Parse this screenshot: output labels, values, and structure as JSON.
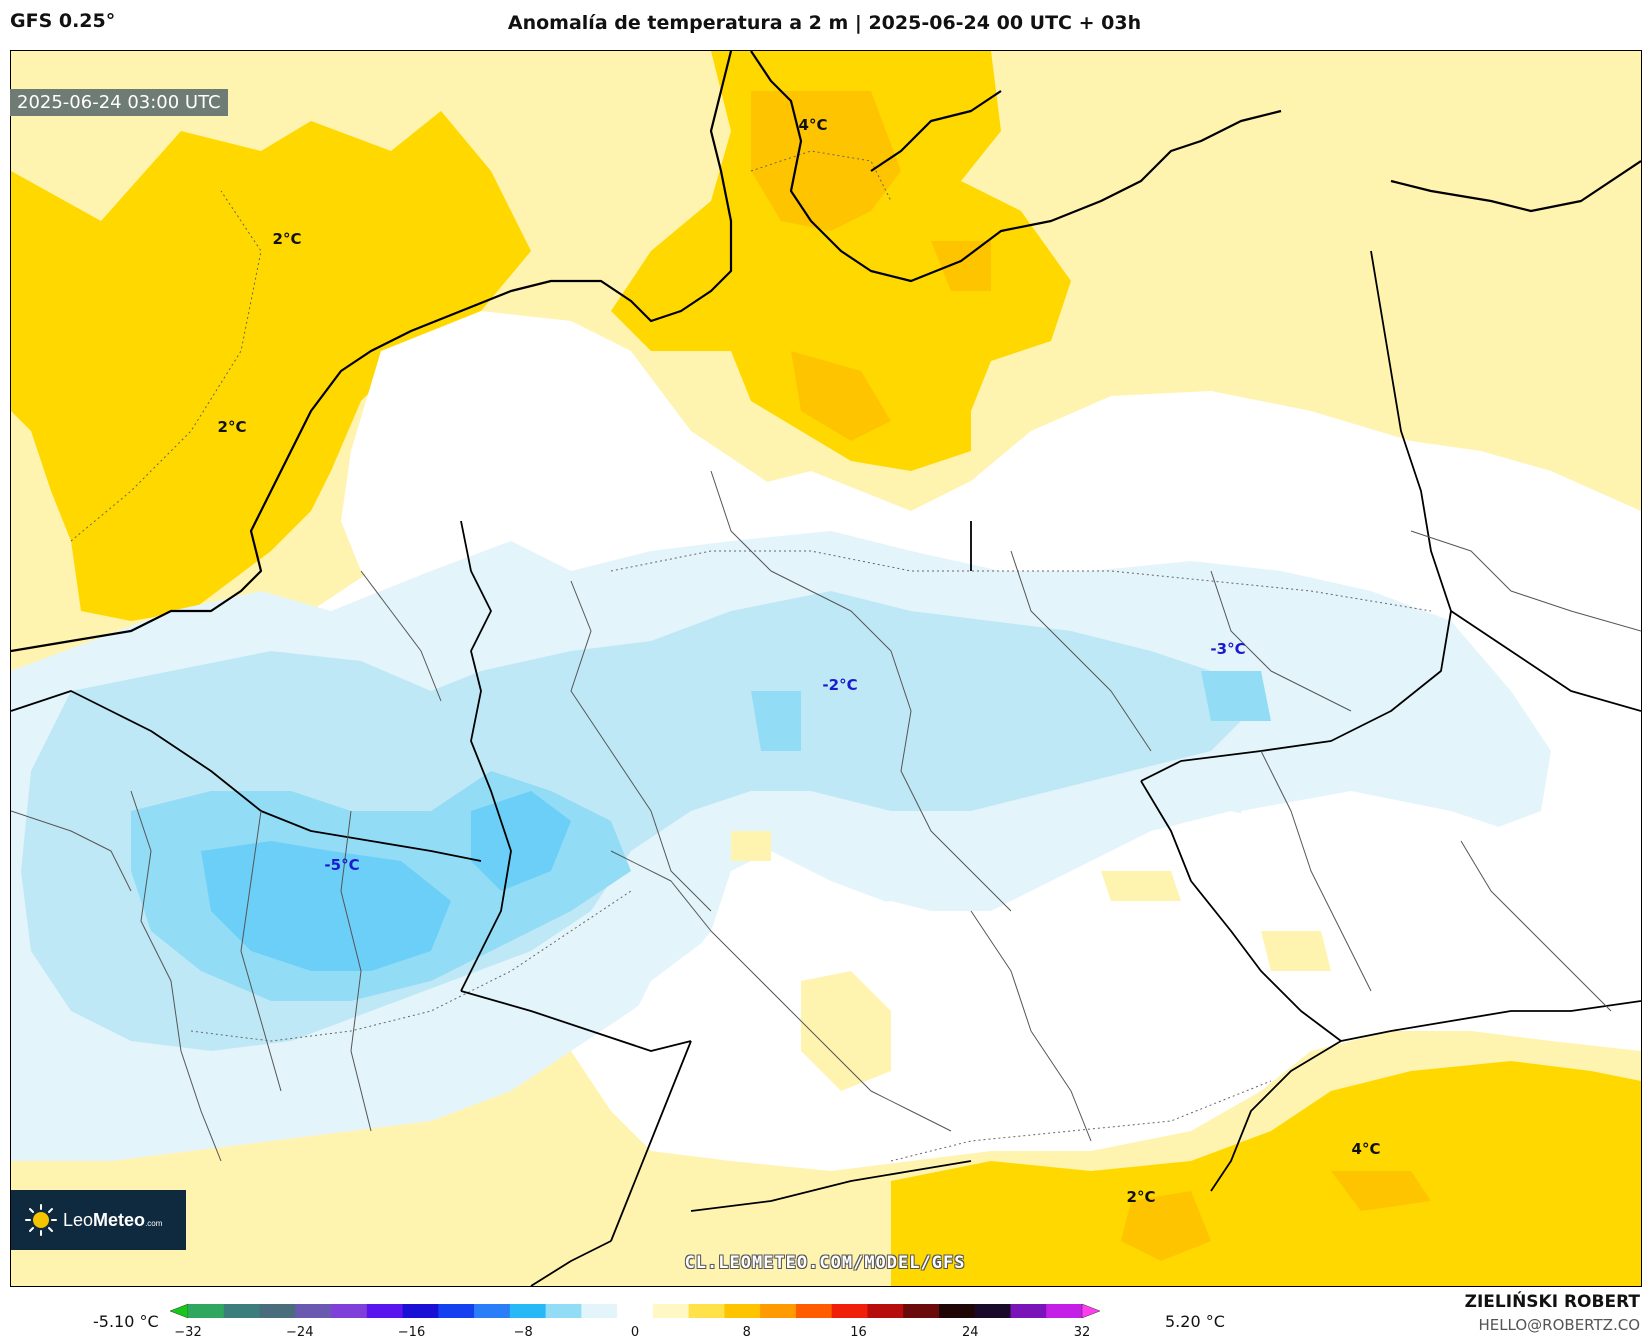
{
  "header": {
    "model": "GFS 0.25°",
    "title": "Anomalía de temperatura a 2 m | 2025-06-24 00 UTC + 03h"
  },
  "map": {
    "valid_time": "2025-06-24 03:00 UTC",
    "labels": {
      "warm_north_sea_1": "2°C",
      "warm_north_sea_2": "2°C",
      "warm_denmark": "4°C",
      "cold_central": "-2°C",
      "cold_east": "-3°C",
      "cold_west": "-5°C",
      "warm_south_1": "2°C",
      "warm_south_2": "4°C"
    },
    "watermark": "CL.LEOMETEO.COM/MODEL/GFS"
  },
  "logo": {
    "name_part1": "Leo",
    "name_part2": "Meteo",
    "suffix": ".com"
  },
  "colorbar": {
    "min_label": "-5.10 °C",
    "max_label": "5.20 °C",
    "ticks": [
      "−32",
      "−24",
      "−16",
      "−8",
      "0",
      "8",
      "16",
      "24",
      "32"
    ],
    "colors": [
      "#17c81a",
      "#2fa75e",
      "#3b7e7b",
      "#4a6d7d",
      "#6a59b0",
      "#7f3fd8",
      "#5a15ef",
      "#1a0fd4",
      "#1440f0",
      "#2a7ef8",
      "#27b8f8",
      "#93dcf5",
      "#e3f4fb",
      "#ffffff",
      "#fff8c4",
      "#ffe14a",
      "#ffc400",
      "#ff9a00",
      "#ff5c00",
      "#f01f0a",
      "#b80d0d",
      "#6a0a0a",
      "#200505",
      "#1a0a2a",
      "#7a14b8",
      "#c31fe6",
      "#ff3df0"
    ]
  },
  "credits": {
    "author": "ZIELIŃSKI ROBERT",
    "email": "HELLO@ROBERTZ.CO"
  }
}
